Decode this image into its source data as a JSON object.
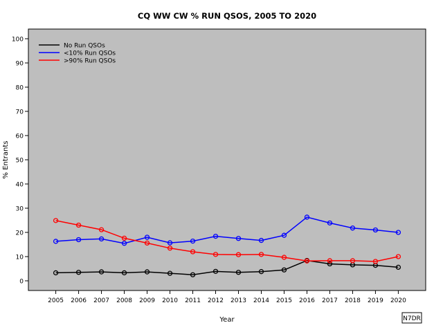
{
  "chart_data": {
    "type": "line",
    "title": "CQ WW CW % RUN QSOS, 2005 TO 2020",
    "xlabel": "Year",
    "ylabel": "% Entrants",
    "x": [
      2005,
      2006,
      2007,
      2008,
      2009,
      2010,
      2011,
      2012,
      2013,
      2014,
      2015,
      2016,
      2017,
      2018,
      2019,
      2020
    ],
    "xlim": [
      2003.8,
      2021.2
    ],
    "ylim": [
      -4,
      104
    ],
    "yticks": [
      0,
      10,
      20,
      30,
      40,
      50,
      60,
      70,
      80,
      90,
      100
    ],
    "grid": false,
    "legend_position": "top-left",
    "background_color": "#bebebe",
    "series": [
      {
        "name": "No Run QSOs",
        "color": "#000000",
        "values": [
          3.3,
          3.5,
          3.7,
          3.3,
          3.7,
          3.1,
          2.5,
          3.9,
          3.5,
          3.8,
          4.5,
          8.4,
          7.0,
          6.6,
          6.4,
          5.6
        ]
      },
      {
        "name": "<10% Run QSOs",
        "color": "#0000ff",
        "values": [
          16.3,
          17.0,
          17.3,
          15.5,
          18.0,
          15.7,
          16.4,
          18.4,
          17.5,
          16.7,
          18.8,
          26.3,
          23.9,
          21.8,
          21.0,
          20.0
        ]
      },
      {
        "name": ">90% Run QSOs",
        "color": "#ff0000",
        "values": [
          24.9,
          23.0,
          21.1,
          17.6,
          15.6,
          13.5,
          12.0,
          10.9,
          10.8,
          10.9,
          9.7,
          8.2,
          8.3,
          8.3,
          8.0,
          10.0
        ]
      }
    ],
    "annotation": "N7DR"
  }
}
